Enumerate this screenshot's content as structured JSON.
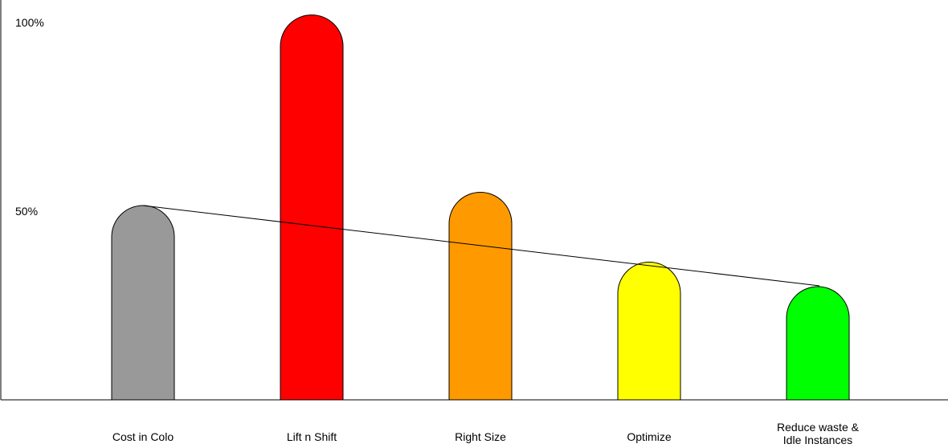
{
  "chart_data": {
    "type": "bar",
    "title": "",
    "xlabel": "",
    "ylabel": "",
    "ylim": [
      0,
      100
    ],
    "yticks": [
      {
        "value": 50,
        "label": "50%"
      },
      {
        "value": 100,
        "label": "100%"
      }
    ],
    "grid": false,
    "legend": "none",
    "categories": [
      [
        "Cost in Colo"
      ],
      [
        "Lift n Shift"
      ],
      [
        "Right Size"
      ],
      [
        "Optimize"
      ],
      [
        "Reduce waste &",
        "Idle Instances"
      ]
    ],
    "values": [
      51.5,
      102,
      55,
      36.5,
      30
    ],
    "colors": [
      "#999999",
      "#ff0000",
      "#ff9900",
      "#ffff00",
      "#00ff00"
    ],
    "trend_line": {
      "from_index": 0,
      "to_index": 4,
      "color": "#000000"
    }
  }
}
